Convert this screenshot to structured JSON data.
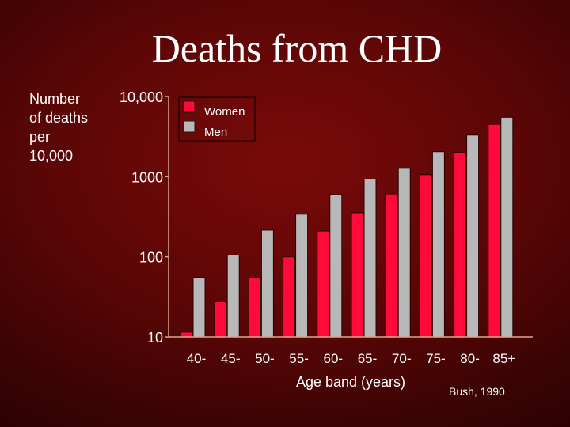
{
  "chart_data": {
    "type": "bar",
    "title": "Deaths from CHD",
    "ylabel_lines": [
      "Number",
      "of deaths",
      "per",
      "10,000"
    ],
    "xlabel": "Age band (years)",
    "yscale": "log",
    "ylim": [
      10,
      10000
    ],
    "ytick_labels": [
      "10,000",
      "1000",
      "100",
      "10"
    ],
    "categories": [
      "40-",
      "45-",
      "50-",
      "55-",
      "60-",
      "65-",
      "70-",
      "75-",
      "80-",
      "85+"
    ],
    "series": [
      {
        "name": "Women",
        "color": "#ff0a3a",
        "values": [
          11.5,
          27.5,
          55,
          100,
          210,
          355,
          610,
          1060,
          2000,
          4500
        ]
      },
      {
        "name": "Men",
        "color": "#b8b8b8",
        "values": [
          55,
          105,
          215,
          340,
          600,
          930,
          1270,
          2050,
          3300,
          5500
        ]
      }
    ],
    "legend_position": "top-right"
  },
  "source": "Bush, 1990"
}
